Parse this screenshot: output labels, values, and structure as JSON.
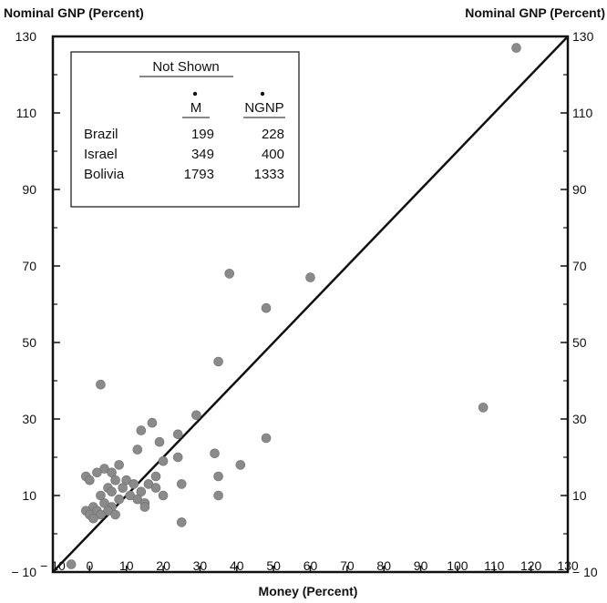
{
  "chart_data": {
    "type": "scatter",
    "title": "",
    "xlabel": "Money (Percent)",
    "ylabel_left": "Nominal GNP (Percent)",
    "ylabel_right": "Nominal GNP (Percent)",
    "xlim": [
      -10,
      130
    ],
    "ylim": [
      -10,
      130
    ],
    "x_ticks": [
      -10,
      0,
      10,
      20,
      30,
      40,
      50,
      60,
      70,
      80,
      90,
      100,
      110,
      120,
      130
    ],
    "y_ticks": [
      -10,
      10,
      30,
      50,
      70,
      90,
      110,
      130
    ],
    "y_minor_ticks": [
      0,
      20,
      40,
      60,
      80,
      100,
      120
    ],
    "reference_line": {
      "from": [
        -10,
        -10
      ],
      "to": [
        130,
        130
      ]
    },
    "point_color": "#8a8a8a",
    "points": [
      {
        "x": 116,
        "y": 127
      },
      {
        "x": 107,
        "y": 33
      },
      {
        "x": 38,
        "y": 68
      },
      {
        "x": 60,
        "y": 67
      },
      {
        "x": 48,
        "y": 59
      },
      {
        "x": 35,
        "y": 45
      },
      {
        "x": 3,
        "y": 39
      },
      {
        "x": 29,
        "y": 31
      },
      {
        "x": 17,
        "y": 29
      },
      {
        "x": 14,
        "y": 27
      },
      {
        "x": 24,
        "y": 26
      },
      {
        "x": 48,
        "y": 25
      },
      {
        "x": 19,
        "y": 24
      },
      {
        "x": 13,
        "y": 22
      },
      {
        "x": 34,
        "y": 21
      },
      {
        "x": 24,
        "y": 20
      },
      {
        "x": 20,
        "y": 19
      },
      {
        "x": 41,
        "y": 18
      },
      {
        "x": 8,
        "y": 18
      },
      {
        "x": 4,
        "y": 17
      },
      {
        "x": 6,
        "y": 16
      },
      {
        "x": 2,
        "y": 16
      },
      {
        "x": -1,
        "y": 15
      },
      {
        "x": 18,
        "y": 15
      },
      {
        "x": 35,
        "y": 15
      },
      {
        "x": 10,
        "y": 14
      },
      {
        "x": 0,
        "y": 14
      },
      {
        "x": 7,
        "y": 14
      },
      {
        "x": 16,
        "y": 13
      },
      {
        "x": 12,
        "y": 13
      },
      {
        "x": 25,
        "y": 13
      },
      {
        "x": 5,
        "y": 12
      },
      {
        "x": 9,
        "y": 12
      },
      {
        "x": 18,
        "y": 12
      },
      {
        "x": 14,
        "y": 11
      },
      {
        "x": 6,
        "y": 11
      },
      {
        "x": 3,
        "y": 10
      },
      {
        "x": 11,
        "y": 10
      },
      {
        "x": 20,
        "y": 10
      },
      {
        "x": 35,
        "y": 10
      },
      {
        "x": 13,
        "y": 9
      },
      {
        "x": 8,
        "y": 9
      },
      {
        "x": 4,
        "y": 8
      },
      {
        "x": 15,
        "y": 8
      },
      {
        "x": 1,
        "y": 7
      },
      {
        "x": 6,
        "y": 7
      },
      {
        "x": 15,
        "y": 7
      },
      {
        "x": -1,
        "y": 6
      },
      {
        "x": 2,
        "y": 6
      },
      {
        "x": 5,
        "y": 6
      },
      {
        "x": 0,
        "y": 5
      },
      {
        "x": 3,
        "y": 5
      },
      {
        "x": 7,
        "y": 5
      },
      {
        "x": 1,
        "y": 4
      },
      {
        "x": 25,
        "y": 3
      },
      {
        "x": -5,
        "y": -8
      }
    ],
    "inset_table": {
      "title": "Not Shown",
      "columns": [
        "M",
        "NGNP"
      ],
      "rows": [
        {
          "label": "Brazil",
          "m": "199",
          "ngnp": "228"
        },
        {
          "label": "Israel",
          "m": "349",
          "ngnp": "400"
        },
        {
          "label": "Bolivia",
          "m": "1793",
          "ngnp": "1333"
        }
      ]
    }
  }
}
